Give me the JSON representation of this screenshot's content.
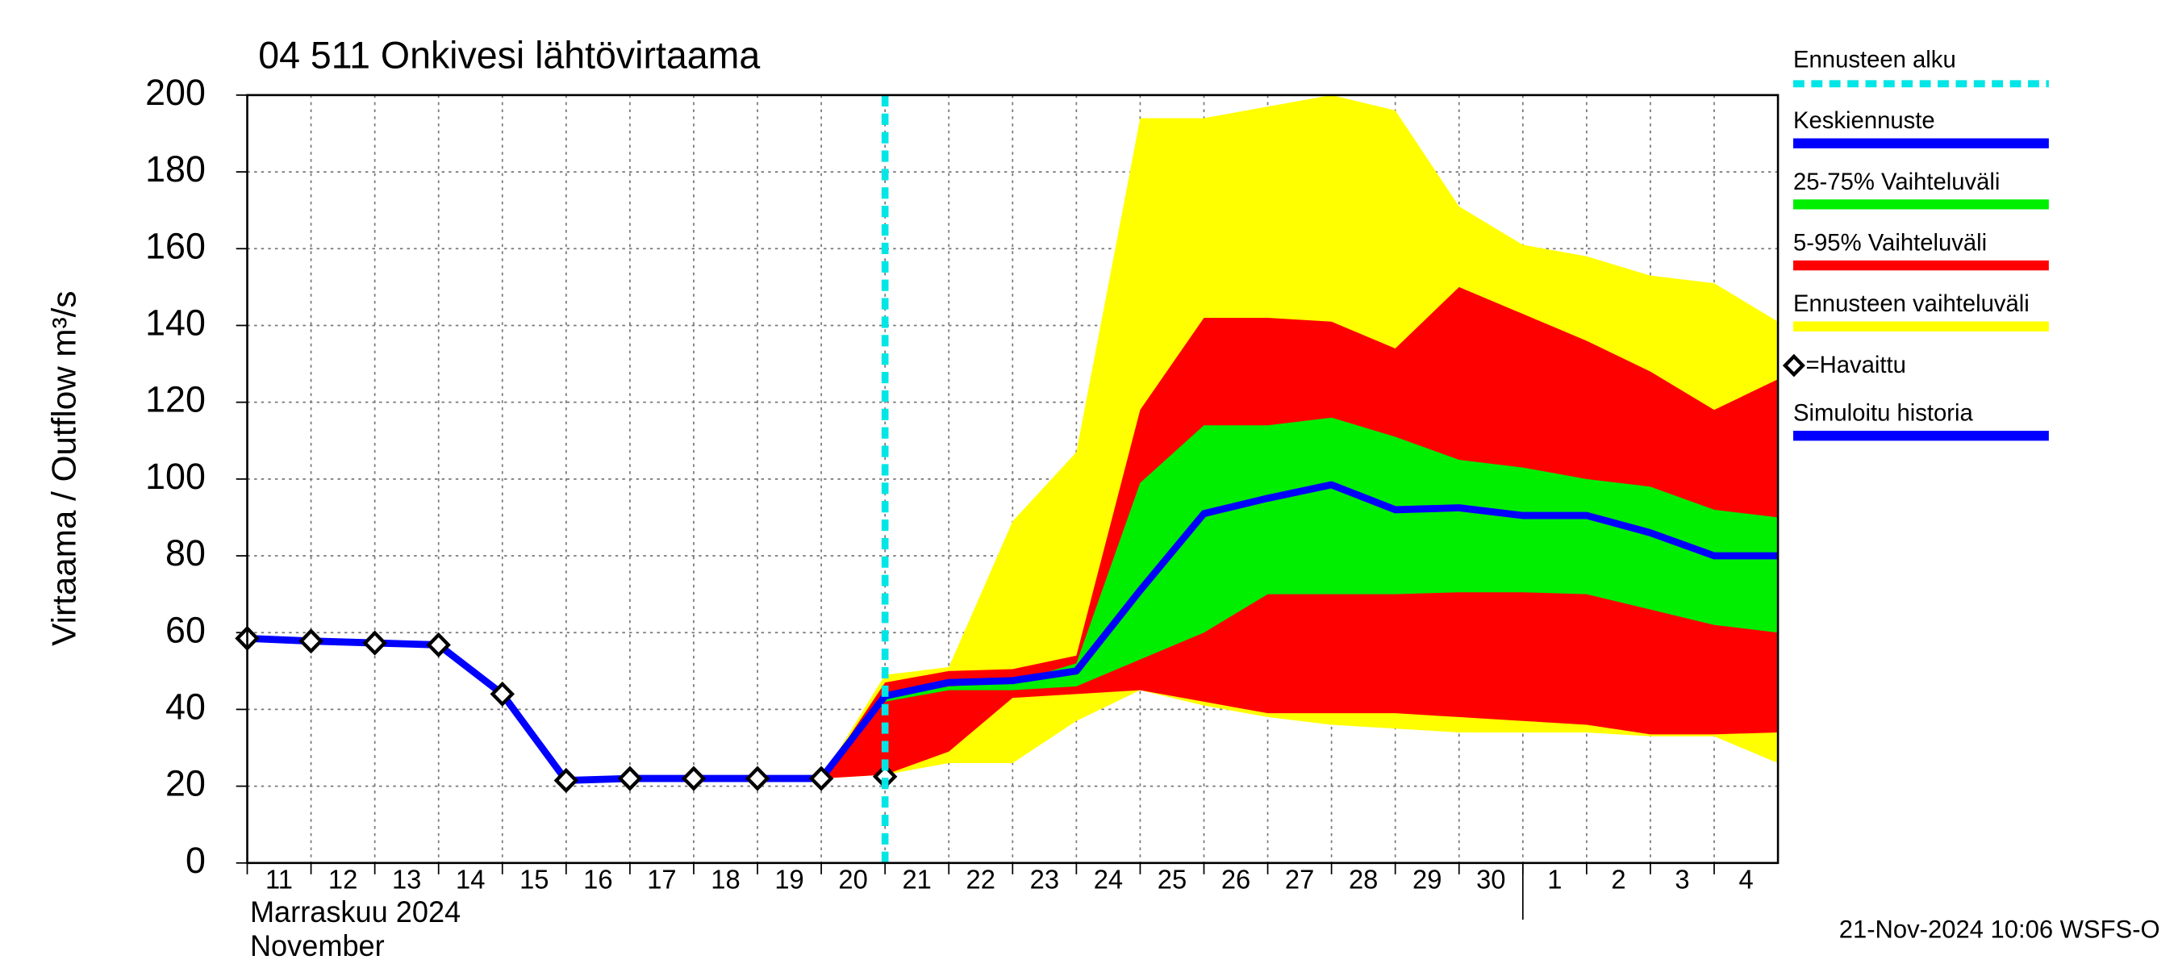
{
  "chart_data": {
    "type": "line",
    "title": "04 511 Onkivesi lähtövirtaama",
    "y_label": "Virtaama / Outflow   m³/s",
    "x_label_fi": "Marraskuu 2024",
    "x_label_en": "November",
    "footer": "21-Nov-2024 10:06 WSFS-O",
    "grid": true,
    "x": [
      "2024-11-11",
      "2024-11-12",
      "2024-11-13",
      "2024-11-14",
      "2024-11-15",
      "2024-11-16",
      "2024-11-17",
      "2024-11-18",
      "2024-11-19",
      "2024-11-20",
      "2024-11-21",
      "2024-11-22",
      "2024-11-23",
      "2024-11-24",
      "2024-11-25",
      "2024-11-26",
      "2024-11-27",
      "2024-11-28",
      "2024-11-29",
      "2024-11-30",
      "2024-12-01",
      "2024-12-02",
      "2024-12-03",
      "2024-12-04",
      "2024-12-05"
    ],
    "xlim": [
      "2024-11-11",
      "2024-12-05"
    ],
    "xticks": [
      {
        "value": "2024-11-11",
        "label": "11"
      },
      {
        "value": "2024-11-12",
        "label": "12"
      },
      {
        "value": "2024-11-13",
        "label": "13"
      },
      {
        "value": "2024-11-14",
        "label": "14"
      },
      {
        "value": "2024-11-15",
        "label": "15"
      },
      {
        "value": "2024-11-16",
        "label": "16"
      },
      {
        "value": "2024-11-17",
        "label": "17"
      },
      {
        "value": "2024-11-18",
        "label": "18"
      },
      {
        "value": "2024-11-19",
        "label": "19"
      },
      {
        "value": "2024-11-20",
        "label": "20"
      },
      {
        "value": "2024-11-21",
        "label": "21"
      },
      {
        "value": "2024-11-22",
        "label": "22"
      },
      {
        "value": "2024-11-23",
        "label": "23"
      },
      {
        "value": "2024-11-24",
        "label": "24"
      },
      {
        "value": "2024-11-25",
        "label": "25"
      },
      {
        "value": "2024-11-26",
        "label": "26"
      },
      {
        "value": "2024-11-27",
        "label": "27"
      },
      {
        "value": "2024-11-28",
        "label": "28"
      },
      {
        "value": "2024-11-29",
        "label": "29"
      },
      {
        "value": "2024-11-30",
        "label": "30"
      },
      {
        "value": "2024-12-01",
        "label": "1"
      },
      {
        "value": "2024-12-02",
        "label": "2"
      },
      {
        "value": "2024-12-03",
        "label": "3"
      },
      {
        "value": "2024-12-04",
        "label": "4"
      }
    ],
    "ylim": [
      0,
      200
    ],
    "yticks": [
      0,
      20,
      40,
      60,
      80,
      100,
      120,
      140,
      160,
      180,
      200
    ],
    "forecast_start": {
      "name": "Ennusteen alku",
      "x": "2024-11-21",
      "color": "#00e5e5"
    },
    "series": [
      {
        "name": "Keskiennuste",
        "kind": "line",
        "color": "#0000ff",
        "values": [
          null,
          null,
          null,
          null,
          null,
          null,
          null,
          null,
          null,
          22,
          43.5,
          47,
          47.5,
          50,
          71,
          91,
          95,
          98.5,
          92,
          92.5,
          90.5,
          90.5,
          86,
          80,
          80
        ]
      },
      {
        "name": "25-75% Vaihteluväli",
        "kind": "band",
        "color": "#00ee00",
        "lower": [
          null,
          null,
          null,
          null,
          null,
          null,
          null,
          null,
          null,
          22,
          42,
          45,
          45,
          46,
          53,
          60,
          70,
          70,
          70,
          70.5,
          70.5,
          70,
          66,
          62,
          60
        ],
        "upper": [
          null,
          null,
          null,
          null,
          null,
          null,
          null,
          null,
          null,
          22,
          43,
          46,
          47,
          52,
          99,
          114,
          114,
          116,
          111,
          105,
          103,
          100,
          98,
          92,
          90
        ]
      },
      {
        "name": "5-95% Vaihteluväli",
        "kind": "band",
        "color": "#ff0000",
        "lower": [
          null,
          null,
          null,
          null,
          null,
          null,
          null,
          null,
          null,
          22,
          23,
          29,
          43,
          44,
          45,
          42,
          39,
          39,
          39,
          38,
          37,
          36,
          33.5,
          33.5,
          34
        ],
        "upper": [
          null,
          null,
          null,
          null,
          null,
          null,
          null,
          null,
          null,
          22,
          47,
          50,
          50.5,
          54,
          118,
          142,
          142,
          141,
          134,
          150,
          143,
          136,
          128,
          118,
          126
        ]
      },
      {
        "name": "Ennusteen vaihteluväli",
        "kind": "band",
        "color": "#ffff00",
        "lower": [
          null,
          null,
          null,
          null,
          null,
          null,
          null,
          null,
          null,
          22,
          23,
          26,
          26,
          37,
          45,
          41,
          38,
          36,
          35,
          34,
          34,
          34,
          33,
          33,
          26
        ],
        "upper": [
          null,
          null,
          null,
          null,
          null,
          null,
          null,
          null,
          null,
          22,
          49,
          51,
          89,
          107,
          194,
          194,
          197,
          200,
          196,
          171,
          161,
          158,
          153,
          151,
          141
        ]
      },
      {
        "name": "=Havaittu",
        "kind": "marker",
        "color": "#000000",
        "values": [
          58.5,
          57.8,
          57.3,
          56.8,
          44,
          21.5,
          22,
          22,
          22,
          22,
          22.5,
          null,
          null,
          null,
          null,
          null,
          null,
          null,
          null,
          null,
          null,
          null,
          null,
          null,
          null
        ]
      },
      {
        "name": "Simuloitu historia",
        "kind": "line",
        "color": "#0000ff",
        "values": [
          58.5,
          57.8,
          57.3,
          56.8,
          44,
          21.5,
          22,
          22,
          22,
          22,
          null,
          null,
          null,
          null,
          null,
          null,
          null,
          null,
          null,
          null,
          null,
          null,
          null,
          null,
          null
        ]
      }
    ]
  }
}
